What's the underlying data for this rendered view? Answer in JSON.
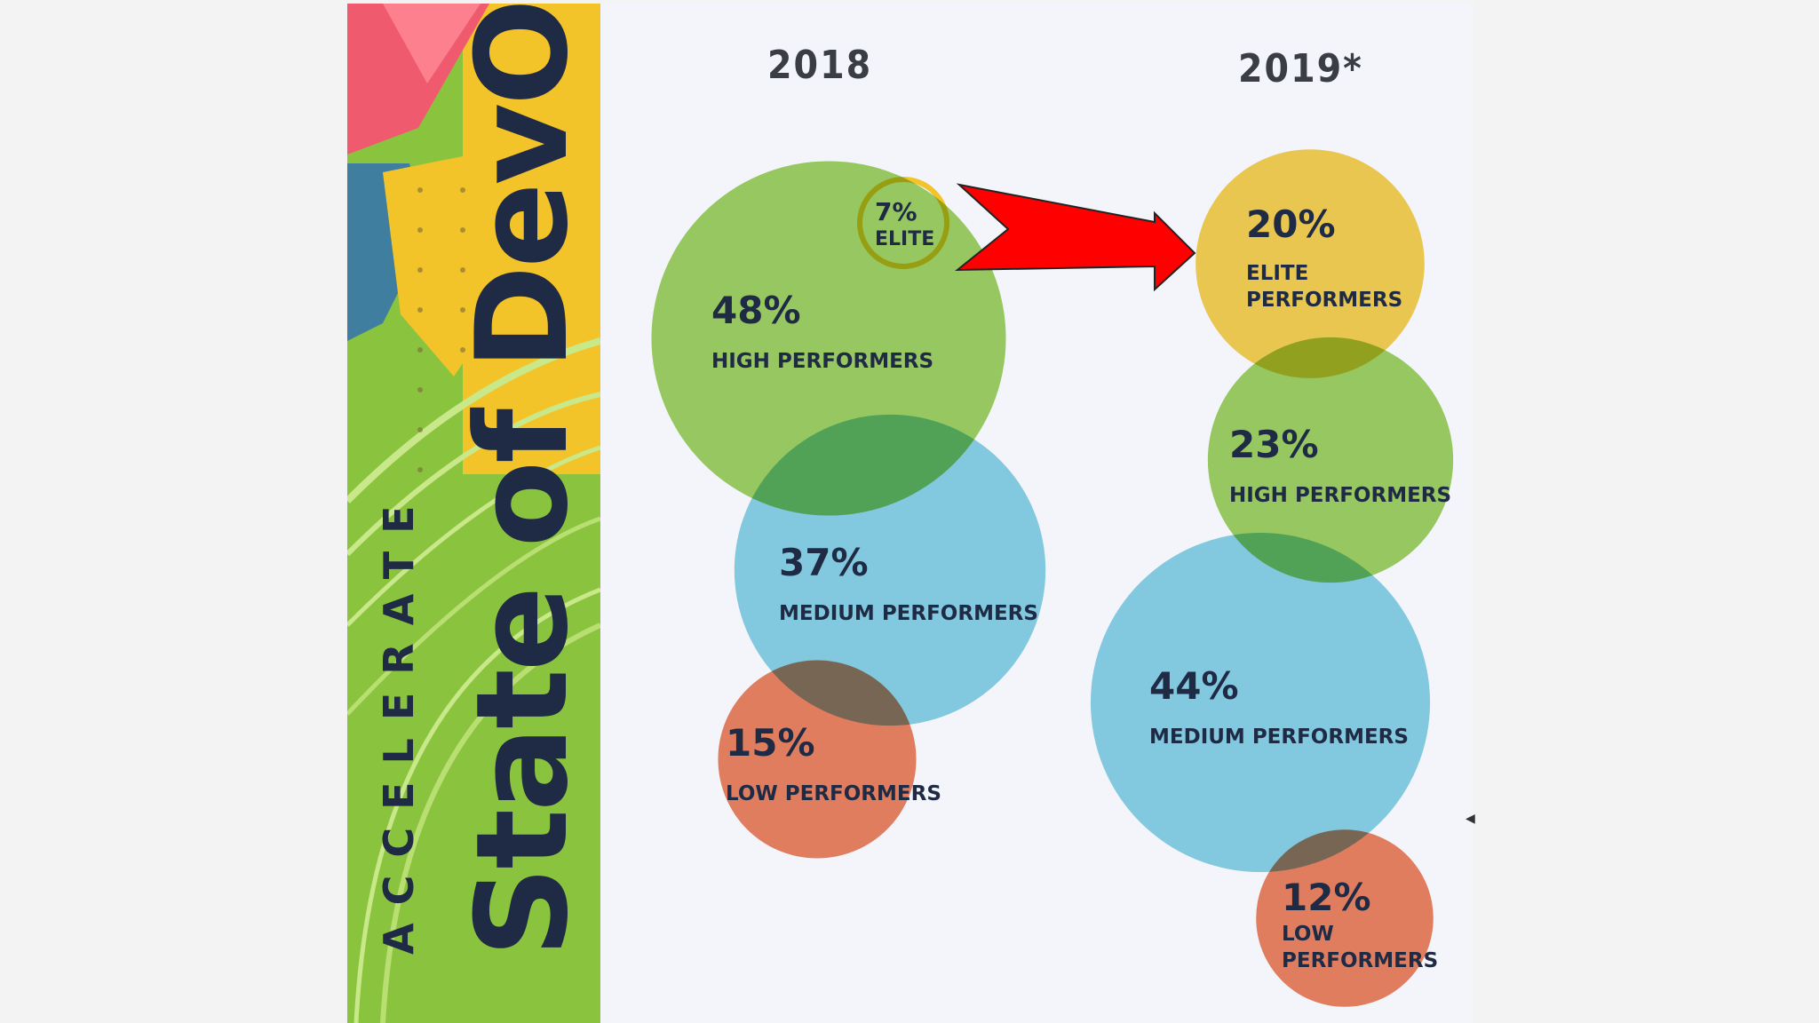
{
  "banner": {
    "title": "State of DevOps",
    "subtitle": "ACCELERATE"
  },
  "chart_data": [
    {
      "type": "bubble",
      "title": "2018",
      "series": [
        {
          "name": "ELITE",
          "value": 7,
          "value_label": "7%",
          "label_lines": [
            "ELITE"
          ],
          "color": "#f3c32a",
          "outline_only": true
        },
        {
          "name": "HIGH PERFORMERS",
          "value": 48,
          "value_label": "48%",
          "label_lines": [
            "HIGH PERFORMERS"
          ],
          "color": "#8ac43f"
        },
        {
          "name": "MEDIUM PERFORMERS",
          "value": 37,
          "value_label": "37%",
          "label_lines": [
            "MEDIUM PERFORMERS"
          ],
          "color": "#6ec6dd"
        },
        {
          "name": "LOW PERFORMERS",
          "value": 15,
          "value_label": "15%",
          "label_lines": [
            "LOW PERFORMERS"
          ],
          "color": "#e8673e"
        }
      ]
    },
    {
      "type": "bubble",
      "title": "2019*",
      "series": [
        {
          "name": "ELITE PERFORMERS",
          "value": 20,
          "value_label": "20%",
          "label_lines": [
            "ELITE",
            "PERFORMERS"
          ],
          "color": "#f3c32a"
        },
        {
          "name": "HIGH PERFORMERS",
          "value": 23,
          "value_label": "23%",
          "label_lines": [
            "HIGH PERFORMERS"
          ],
          "color": "#8ac43f"
        },
        {
          "name": "MEDIUM PERFORMERS",
          "value": 44,
          "value_label": "44%",
          "label_lines": [
            "MEDIUM PERFORMERS"
          ],
          "color": "#6ec6dd"
        },
        {
          "name": "LOW PERFORMERS",
          "value": 12,
          "value_label": "12%",
          "label_lines": [
            "LOW",
            "PERFORMERS"
          ],
          "color": "#e8673e"
        }
      ]
    }
  ],
  "colors": {
    "arrow": "#ff0000",
    "text_dark": "#1f2a44",
    "banner_green": "#8ac43f",
    "banner_yellow": "#f3c32a"
  }
}
